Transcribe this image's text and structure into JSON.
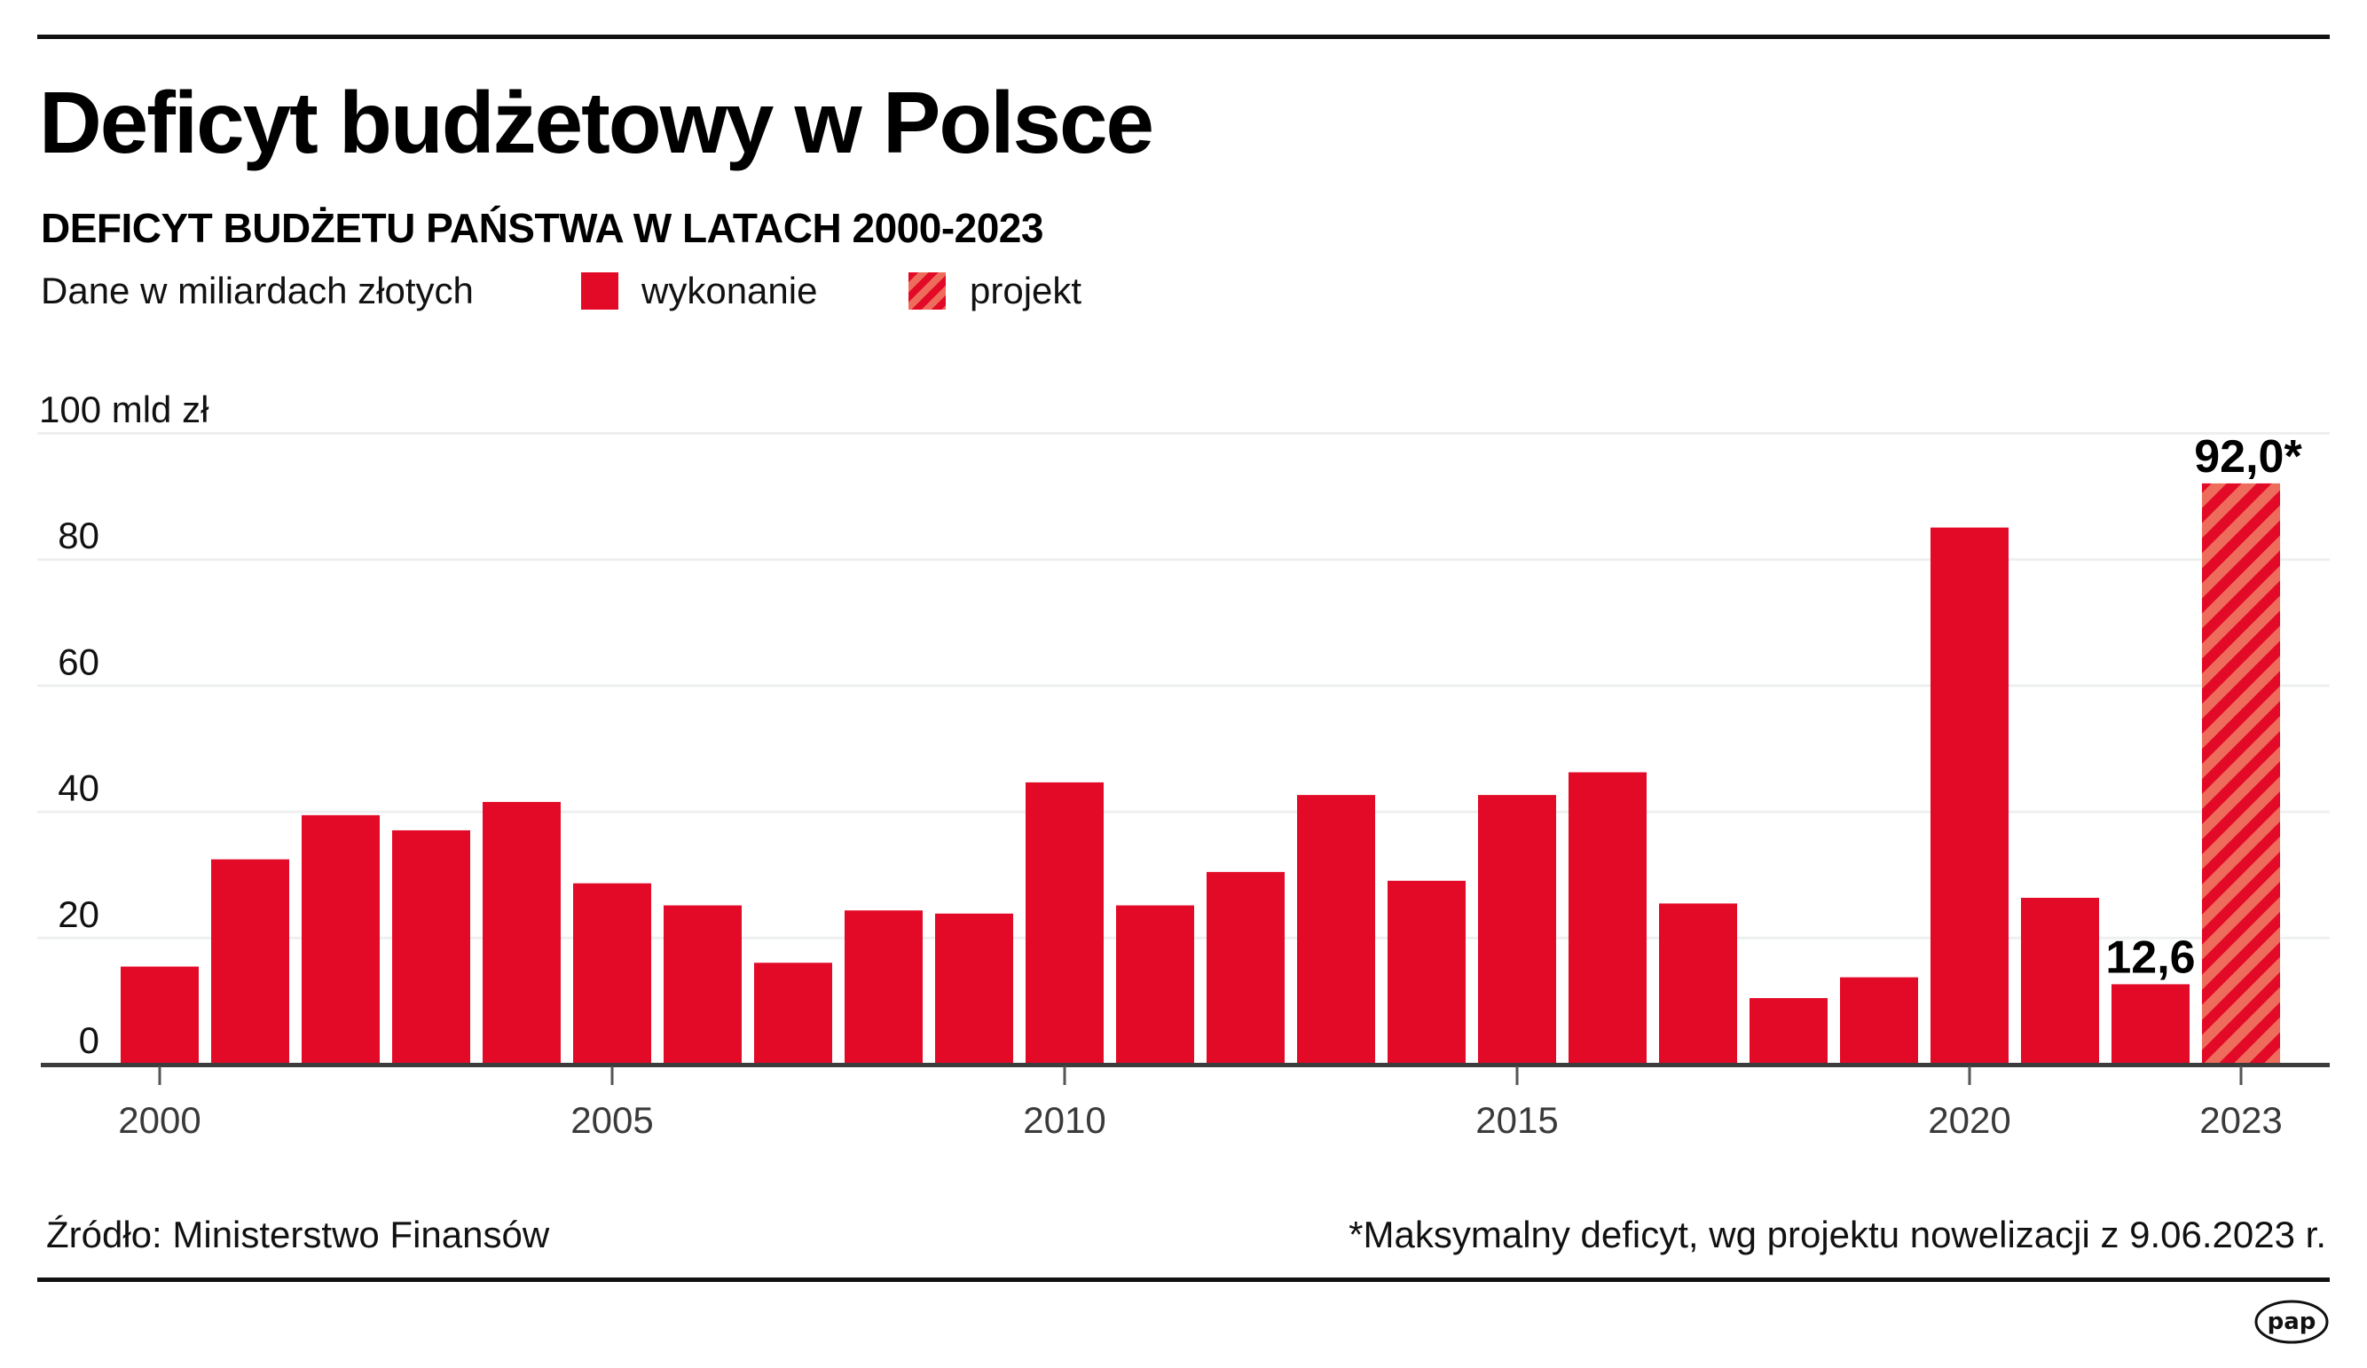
{
  "header": {
    "title": "Deficyt budżetowy w Polsce",
    "subtitle": "DEFICYT BUDŻETU PAŃSTWA W LATACH 2000-2023"
  },
  "legend": {
    "unit_note": "Dane w miliardach złotych",
    "items": [
      {
        "label": "wykonanie",
        "style": "solid",
        "color": "#e30a27"
      },
      {
        "label": "projekt",
        "style": "hatched",
        "color": "#e30a27",
        "color2": "#ee6c5c"
      }
    ]
  },
  "chart_data": {
    "type": "bar",
    "title": "DEFICYT BUDŻETU PAŃSTWA W LATACH 2000-2023",
    "xlabel": "",
    "ylabel": "100 mld zł",
    "ylim": [
      0,
      100
    ],
    "grid": true,
    "y_ticks": [
      {
        "value": 0,
        "label": "0"
      },
      {
        "value": 20,
        "label": "20"
      },
      {
        "value": 40,
        "label": "40"
      },
      {
        "value": 60,
        "label": "60"
      },
      {
        "value": 80,
        "label": "80"
      },
      {
        "value": 100,
        "label": "100 mld zł"
      }
    ],
    "x_ticks": [
      {
        "year": 2000,
        "label": "2000"
      },
      {
        "year": 2005,
        "label": "2005"
      },
      {
        "year": 2010,
        "label": "2010"
      },
      {
        "year": 2015,
        "label": "2015"
      },
      {
        "year": 2020,
        "label": "2020"
      },
      {
        "year": 2023,
        "label": "2023"
      }
    ],
    "categories": [
      2000,
      2001,
      2002,
      2003,
      2004,
      2005,
      2006,
      2007,
      2008,
      2009,
      2010,
      2011,
      2012,
      2013,
      2014,
      2015,
      2016,
      2017,
      2018,
      2019,
      2020,
      2021,
      2022,
      2023
    ],
    "series": [
      {
        "name": "wykonanie",
        "values": [
          15.4,
          32.4,
          39.4,
          37.0,
          41.5,
          28.6,
          25.1,
          16.0,
          24.3,
          23.8,
          44.6,
          25.1,
          30.4,
          42.6,
          29.0,
          42.6,
          46.2,
          25.4,
          10.4,
          13.7,
          85.0,
          26.3,
          12.6,
          null
        ]
      },
      {
        "name": "projekt",
        "values": [
          null,
          null,
          null,
          null,
          null,
          null,
          null,
          null,
          null,
          null,
          null,
          null,
          null,
          null,
          null,
          null,
          null,
          null,
          null,
          null,
          null,
          null,
          null,
          92.0
        ]
      }
    ],
    "data_labels": [
      {
        "year": 2022,
        "text": "12,6"
      },
      {
        "year": 2023,
        "text": "92,0*"
      }
    ],
    "colors": {
      "bar": "#e30a27",
      "hatch_light": "#ee6c5c",
      "grid": "#eef0f0",
      "axis": "#3c3c3c"
    }
  },
  "footer": {
    "source": "Źródło: Ministerstwo Finansów",
    "note": "*Maksymalny deficyt, wg projektu nowelizacji z 9.06.2023 r.",
    "logo_text": "pap"
  }
}
